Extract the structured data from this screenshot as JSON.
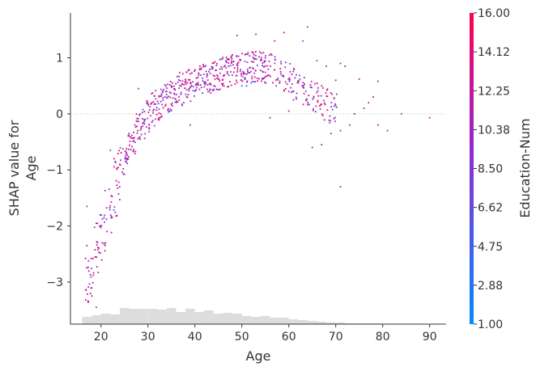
{
  "chart_data": {
    "type": "scatter",
    "title": "",
    "xlabel": "Age",
    "ylabel_line1": "SHAP value for",
    "ylabel_line2": "Age",
    "xlim": [
      13.5,
      93.5
    ],
    "ylim": [
      -3.75,
      1.8
    ],
    "x_ticks": [
      20,
      30,
      40,
      50,
      60,
      70,
      80,
      90
    ],
    "y_ticks": [
      1,
      0,
      -1,
      -2,
      -3
    ],
    "grid": false,
    "zero_line": true,
    "colorbar": {
      "label": "Education-Num",
      "min": 1.0,
      "max": 16.0,
      "tick_labels": [
        "16.00",
        "14.12",
        "12.25",
        "10.38",
        "8.50",
        "6.62",
        "4.75",
        "2.88",
        "1.00"
      ],
      "color_low": "#008bfb",
      "color_high": "#ff0052"
    },
    "shap_curve": [
      [
        17,
        -3.0
      ],
      [
        18,
        -2.8
      ],
      [
        19,
        -2.5
      ],
      [
        20,
        -2.2
      ],
      [
        21,
        -1.9
      ],
      [
        22,
        -1.6
      ],
      [
        23,
        -1.3
      ],
      [
        24,
        -1.05
      ],
      [
        25,
        -0.8
      ],
      [
        26,
        -0.6
      ],
      [
        27,
        -0.42
      ],
      [
        28,
        -0.28
      ],
      [
        29,
        -0.15
      ],
      [
        30,
        -0.03
      ],
      [
        31,
        0.08
      ],
      [
        32,
        0.16
      ],
      [
        33,
        0.23
      ],
      [
        34,
        0.29
      ],
      [
        35,
        0.34
      ],
      [
        36,
        0.39
      ],
      [
        37,
        0.44
      ],
      [
        38,
        0.48
      ],
      [
        39,
        0.52
      ],
      [
        40,
        0.56
      ],
      [
        41,
        0.59
      ],
      [
        42,
        0.62
      ],
      [
        43,
        0.65
      ],
      [
        44,
        0.68
      ],
      [
        45,
        0.7
      ],
      [
        46,
        0.73
      ],
      [
        47,
        0.76
      ],
      [
        48,
        0.78
      ],
      [
        49,
        0.8
      ],
      [
        50,
        0.82
      ],
      [
        51,
        0.84
      ],
      [
        52,
        0.85
      ],
      [
        53,
        0.85
      ],
      [
        54,
        0.84
      ],
      [
        55,
        0.82
      ],
      [
        56,
        0.8
      ],
      [
        57,
        0.77
      ],
      [
        58,
        0.73
      ],
      [
        59,
        0.68
      ],
      [
        60,
        0.62
      ],
      [
        61,
        0.56
      ],
      [
        62,
        0.5
      ],
      [
        63,
        0.44
      ],
      [
        64,
        0.38
      ],
      [
        65,
        0.32
      ],
      [
        66,
        0.27
      ],
      [
        67,
        0.22
      ],
      [
        68,
        0.17
      ],
      [
        69,
        0.12
      ],
      [
        70,
        0.08
      ]
    ],
    "sparse_points": [
      [
        64,
        1.55,
        2
      ],
      [
        63,
        1.3,
        3
      ],
      [
        66,
        0.95,
        4
      ],
      [
        68,
        0.85,
        9
      ],
      [
        71,
        0.9,
        12
      ],
      [
        72,
        0.85,
        10
      ],
      [
        75,
        0.62,
        13
      ],
      [
        79,
        0.58,
        10
      ],
      [
        70,
        0.6,
        11
      ],
      [
        66,
        0.38,
        14
      ],
      [
        67,
        0.5,
        12
      ],
      [
        70,
        0.15,
        10
      ],
      [
        71,
        -0.3,
        13
      ],
      [
        73,
        -0.2,
        9
      ],
      [
        74,
        0.0,
        11
      ],
      [
        76,
        0.1,
        13
      ],
      [
        77,
        0.2,
        12
      ],
      [
        78,
        0.3,
        10
      ],
      [
        79,
        -0.2,
        14
      ],
      [
        81,
        -0.3,
        13
      ],
      [
        84,
        0.0,
        10
      ],
      [
        90,
        -0.07,
        14
      ],
      [
        65,
        -0.6,
        13
      ],
      [
        67,
        -0.55,
        9
      ],
      [
        69,
        -0.35,
        12
      ],
      [
        71,
        -1.3,
        10
      ],
      [
        62,
        0.55,
        11
      ],
      [
        61,
        0.25,
        12
      ],
      [
        60,
        0.05,
        13
      ],
      [
        57,
        1.3,
        14
      ],
      [
        59,
        1.45,
        12
      ],
      [
        55,
        1.0,
        13
      ],
      [
        56,
        -0.07,
        10
      ],
      [
        51,
        0.5,
        3
      ],
      [
        50,
        0.5,
        4
      ],
      [
        52,
        0.55,
        2
      ],
      [
        49,
        1.4,
        13
      ],
      [
        53,
        1.42,
        12
      ],
      [
        22,
        -0.65,
        5
      ],
      [
        23,
        -0.85,
        7
      ],
      [
        17,
        -1.65,
        9
      ],
      [
        17,
        -2.35,
        10
      ],
      [
        18,
        -3.1,
        8
      ],
      [
        19,
        -3.45,
        11
      ],
      [
        37,
        0.35,
        12
      ],
      [
        39,
        -0.2,
        10
      ],
      [
        35,
        0.5,
        13
      ],
      [
        28,
        0.45,
        11
      ],
      [
        24,
        -1.3,
        6
      ],
      [
        19,
        -1.95,
        12
      ]
    ],
    "age_histogram": {
      "bins": [
        17,
        19,
        21,
        23,
        25,
        27,
        29,
        31,
        33,
        35,
        37,
        39,
        41,
        43,
        45,
        47,
        49,
        51,
        53,
        55,
        57,
        59,
        61,
        63,
        65,
        67,
        69,
        71,
        73,
        75,
        77,
        79,
        81,
        83,
        85,
        87,
        89
      ],
      "counts": [
        9,
        11,
        13,
        12,
        20,
        19,
        19,
        19,
        18,
        20,
        15,
        19,
        15,
        17,
        13,
        14,
        13,
        10,
        9,
        10,
        8,
        8,
        6,
        5,
        4,
        3,
        2,
        2,
        1,
        1,
        1,
        1,
        0,
        0,
        0,
        0,
        0
      ]
    }
  }
}
